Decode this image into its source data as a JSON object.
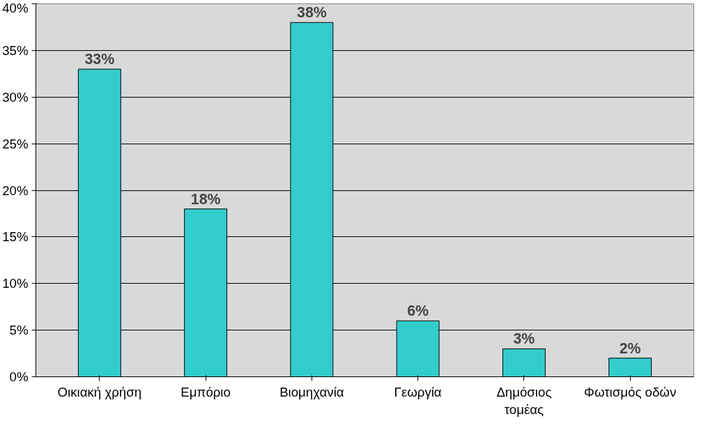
{
  "chart_data": {
    "type": "bar",
    "categories": [
      "Οικιακή χρήση",
      "Εμπόριο",
      "Βιομηχανία",
      "Γεωργία",
      "Δημόσιος τομέας",
      "Φωτισμός οδών"
    ],
    "values": [
      33,
      18,
      38,
      6,
      3,
      2
    ],
    "value_labels": [
      "33%",
      "18%",
      "38%",
      "6%",
      "3%",
      "2%"
    ],
    "color": "#33cccc",
    "ylim": [
      0,
      40
    ],
    "yticks": [
      {
        "value": 0,
        "label": "0%"
      },
      {
        "value": 5,
        "label": "5%"
      },
      {
        "value": 10,
        "label": "10%"
      },
      {
        "value": 15,
        "label": "15%"
      },
      {
        "value": 20,
        "label": "20%"
      },
      {
        "value": 25,
        "label": "25%"
      },
      {
        "value": 30,
        "label": "30%"
      },
      {
        "value": 35,
        "label": "35%"
      },
      {
        "value": 40,
        "label": "40%"
      }
    ],
    "grid": "y"
  }
}
